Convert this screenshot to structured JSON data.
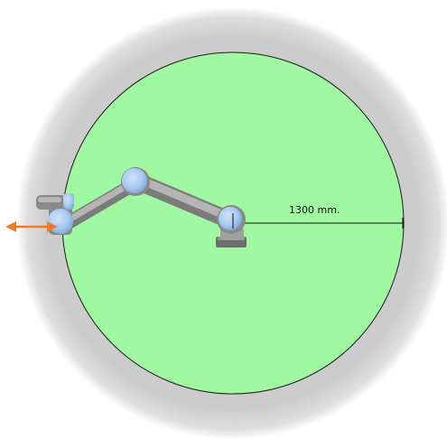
{
  "reach": {
    "label": "1300 mm.",
    "radius_mm": 1300
  },
  "colors": {
    "outer_zone": "#cfcfcf",
    "reach_zone": "#a0f8a0",
    "robot_links": "#9a9a9a",
    "robot_joints": "#a9cbf2",
    "tool_arrow": "#f07a2a"
  },
  "icons": {
    "tool_direction": "double-arrow-icon",
    "base": "robot-base-icon"
  }
}
